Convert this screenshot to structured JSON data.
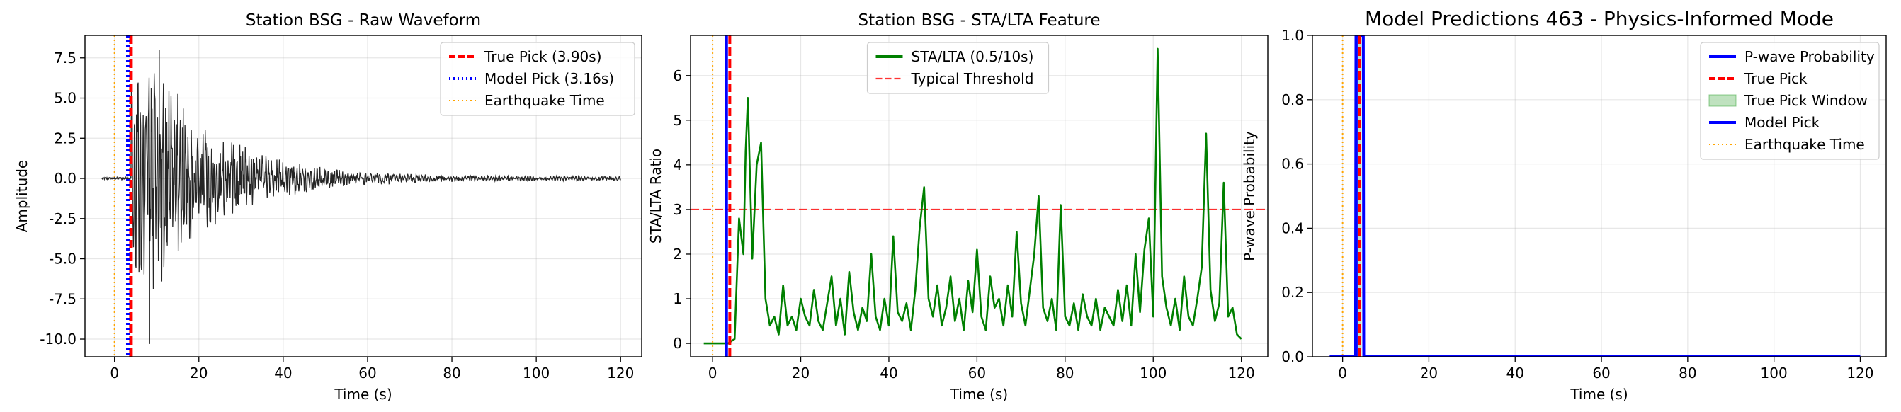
{
  "chart_data": [
    {
      "type": "line",
      "title": "Station BSG - Raw Waveform",
      "xlabel": "Time (s)",
      "ylabel": "Amplitude",
      "xlim": [
        -7,
        125
      ],
      "ylim": [
        -11.1,
        8.9
      ],
      "xticks": [
        0,
        20,
        40,
        60,
        80,
        100,
        120
      ],
      "yticks": [
        -10.0,
        -7.5,
        -5.0,
        -2.5,
        0.0,
        2.5,
        5.0,
        7.5
      ],
      "grid": true,
      "legend_position": "upper right",
      "series": [
        {
          "name": "True Pick (3.90s)",
          "kind": "vline",
          "x": 3.9,
          "color": "#ff0000",
          "style": "dashed"
        },
        {
          "name": "Model Pick (3.16s)",
          "kind": "vline",
          "x": 3.16,
          "color": "#0000ff",
          "style": "dotted"
        },
        {
          "name": "Earthquake Time",
          "kind": "vline",
          "x": 0,
          "color": "#ffa500",
          "style": "dotted"
        }
      ],
      "waveform": {
        "color": "#000000",
        "t_start": -3,
        "t_onset": 4,
        "t_end": 120,
        "peak": 8.0,
        "trough": -10.3,
        "step": 0.1
      }
    },
    {
      "type": "line",
      "title": "Station BSG - STA/LTA Feature",
      "xlabel": "Time (s)",
      "ylabel": "STA/LTA Ratio",
      "xlim": [
        -5,
        126
      ],
      "ylim": [
        -0.3,
        6.9
      ],
      "xticks": [
        0,
        20,
        40,
        60,
        80,
        100,
        120
      ],
      "yticks": [
        0,
        1,
        2,
        3,
        4,
        5,
        6
      ],
      "grid": true,
      "legend_position": "upper center",
      "threshold": 3,
      "series": [
        {
          "name": "STA/LTA (0.5/10s)",
          "kind": "line",
          "color": "#008000",
          "x": [
            -2,
            3.5,
            5,
            6,
            7,
            7.5,
            8,
            9,
            10,
            11,
            12,
            13,
            14,
            15,
            16,
            17,
            18,
            19,
            20,
            21,
            22,
            23,
            24,
            25,
            26,
            27,
            28,
            29,
            30,
            31,
            32,
            33,
            34,
            35,
            36,
            37,
            38,
            39,
            40,
            41,
            42,
            43,
            44,
            45,
            46,
            47,
            48,
            49,
            50,
            51,
            52,
            53,
            54,
            55,
            56,
            57,
            58,
            59,
            60,
            61,
            62,
            63,
            64,
            65,
            66,
            67,
            68,
            69,
            70,
            71,
            72,
            73,
            74,
            75,
            76,
            77,
            78,
            79,
            80,
            81,
            82,
            83,
            84,
            85,
            86,
            87,
            88,
            89,
            90,
            91,
            92,
            93,
            94,
            95,
            96,
            97,
            98,
            99,
            100,
            101,
            102,
            103,
            104,
            105,
            106,
            107,
            108,
            109,
            110,
            111,
            112,
            113,
            114,
            115,
            116,
            117,
            118,
            119,
            120
          ],
          "y": [
            0,
            0,
            0.1,
            2.8,
            2.0,
            4.3,
            5.5,
            1.9,
            4.0,
            4.5,
            1.0,
            0.4,
            0.6,
            0.2,
            1.3,
            0.4,
            0.6,
            0.3,
            1.0,
            0.6,
            0.4,
            1.2,
            0.5,
            0.3,
            0.9,
            1.5,
            0.4,
            1.0,
            0.2,
            1.6,
            0.7,
            0.3,
            0.8,
            0.5,
            2.0,
            0.6,
            0.3,
            1.0,
            0.4,
            2.4,
            0.7,
            0.5,
            0.9,
            0.3,
            1.2,
            2.6,
            3.5,
            1.0,
            0.6,
            1.3,
            0.4,
            0.8,
            1.5,
            0.5,
            1.0,
            0.3,
            1.4,
            0.7,
            2.1,
            0.6,
            0.3,
            1.5,
            0.8,
            1.0,
            0.4,
            1.3,
            0.6,
            2.5,
            0.9,
            0.4,
            1.2,
            2.0,
            3.3,
            0.8,
            0.5,
            1.0,
            0.3,
            3.1,
            0.6,
            0.4,
            0.9,
            0.3,
            1.1,
            0.6,
            0.4,
            1.0,
            0.3,
            0.8,
            0.6,
            0.4,
            1.2,
            0.5,
            1.3,
            0.4,
            2.0,
            0.7,
            2.1,
            2.8,
            0.6,
            6.6,
            1.5,
            0.8,
            0.4,
            1.0,
            0.3,
            1.5,
            0.6,
            0.4,
            1.0,
            1.7,
            4.7,
            1.2,
            0.5,
            0.9,
            3.6,
            0.6,
            0.8,
            0.2,
            0.1
          ]
        },
        {
          "name": "Typical Threshold",
          "kind": "hline",
          "y": 3,
          "color": "#ff0000",
          "style": "dashed"
        }
      ],
      "annotation_lines": [
        {
          "x": 3.16,
          "color": "#0000ff",
          "style": "solid"
        },
        {
          "x": 3.9,
          "color": "#ff0000",
          "style": "dashed"
        },
        {
          "x": 0,
          "color": "#ffa500",
          "style": "dotted"
        }
      ]
    },
    {
      "type": "line",
      "title": "Model Predictions 463 - Physics-Informed Mode",
      "xlabel": "Time (s)",
      "ylabel": "P-wave Probability",
      "xlim": [
        -7,
        126
      ],
      "ylim": [
        0.0,
        1.0
      ],
      "xticks": [
        0,
        20,
        40,
        60,
        80,
        100,
        120
      ],
      "yticks": [
        0.0,
        0.2,
        0.4,
        0.6,
        0.8,
        1.0
      ],
      "grid": true,
      "legend_position": "upper right",
      "series": [
        {
          "name": "P-wave Probability",
          "kind": "line",
          "color": "#0000ff",
          "x": [
            -3,
            3.0,
            3.1,
            4.8,
            4.9,
            120
          ],
          "y": [
            0,
            0,
            1,
            1,
            0,
            0
          ]
        },
        {
          "name": "True Pick",
          "kind": "vline",
          "x": 3.9,
          "color": "#ff0000",
          "style": "dashed"
        },
        {
          "name": "True Pick Window",
          "kind": "span",
          "x0": 3.4,
          "x1": 4.4,
          "color": "#2ca02c"
        },
        {
          "name": "Model Pick",
          "kind": "vline",
          "x": 3.16,
          "color": "#0000ff",
          "style": "solid"
        },
        {
          "name": "Earthquake Time",
          "kind": "vline",
          "x": 0,
          "color": "#ffa500",
          "style": "dotted"
        }
      ]
    }
  ]
}
